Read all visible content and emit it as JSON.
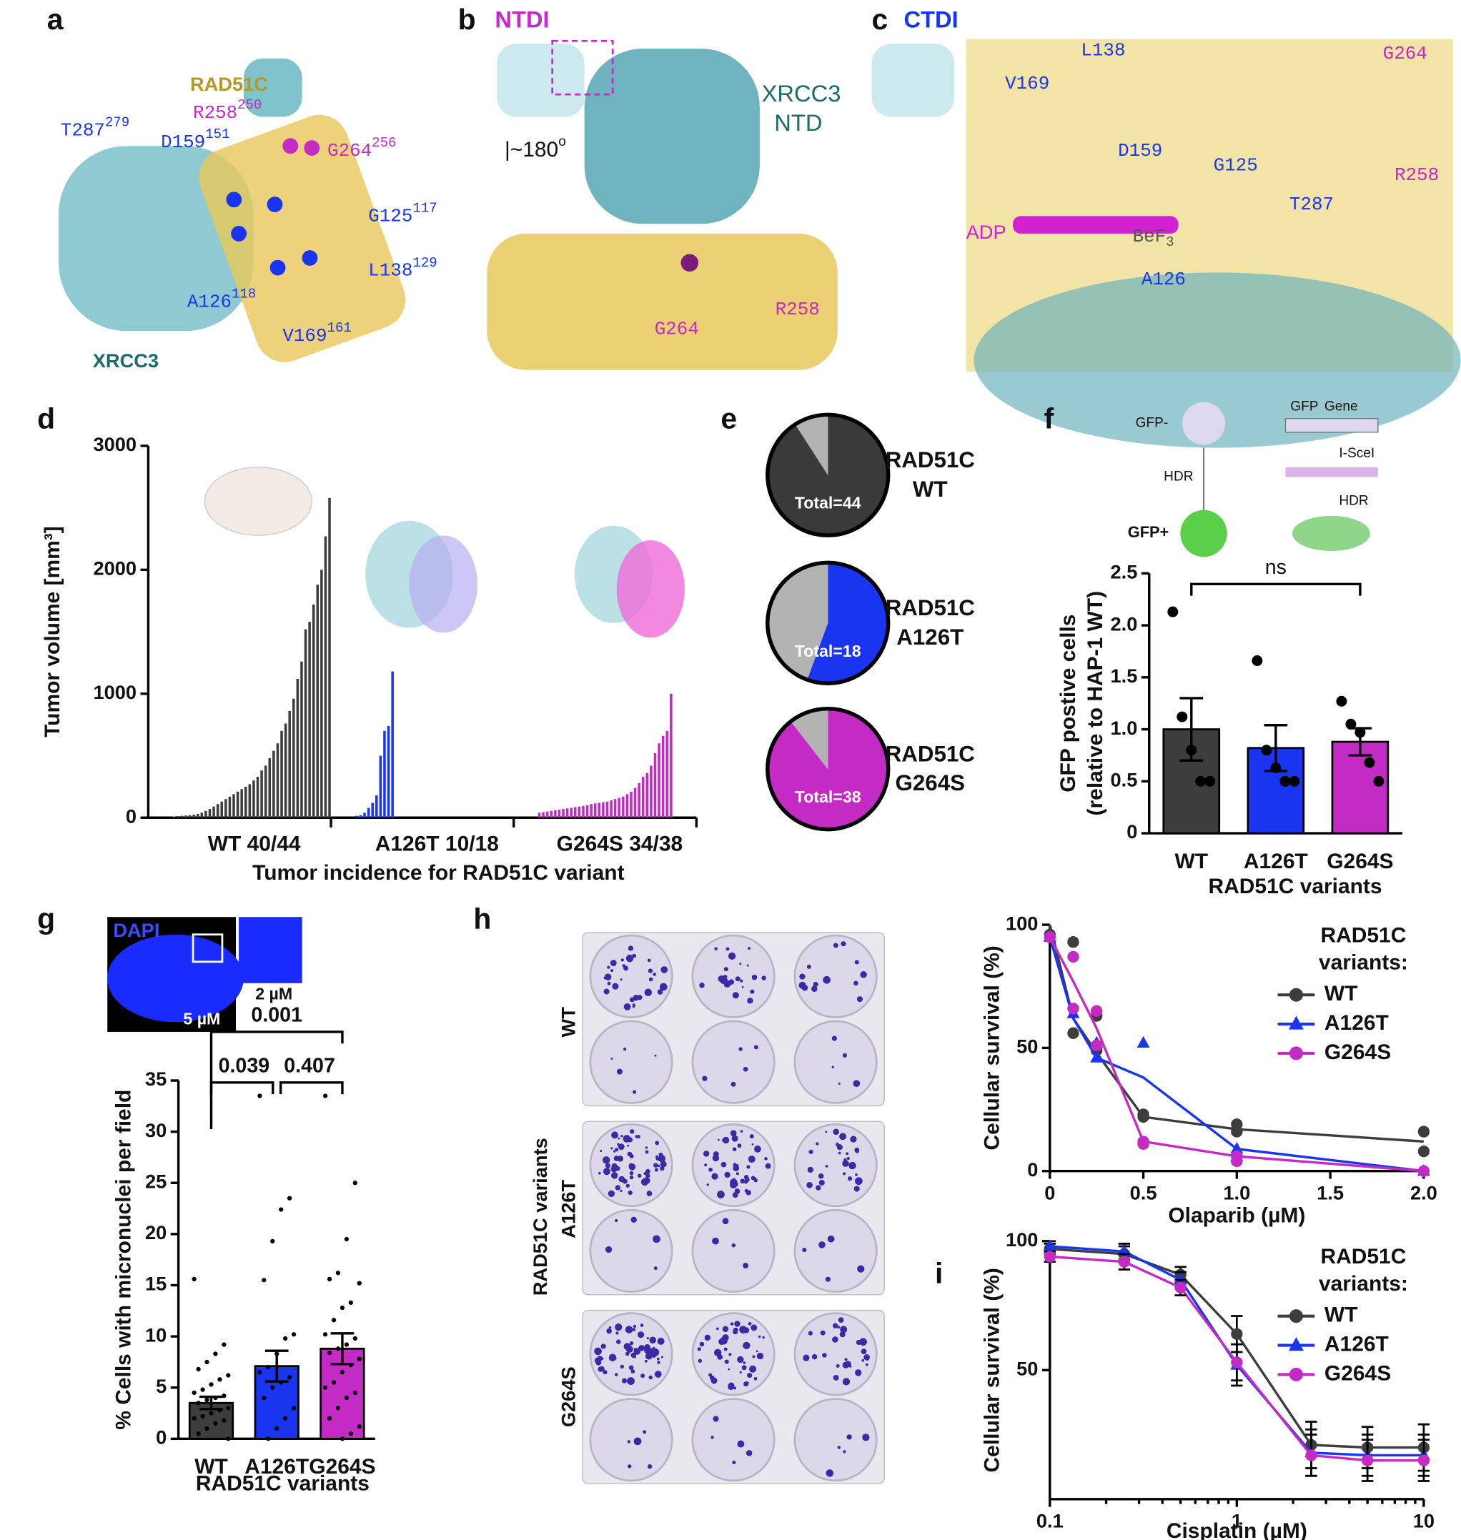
{
  "structure_a": {
    "panel": "a",
    "title": "RAD51C",
    "subunit": "XRCC3",
    "residues": [
      {
        "text": "R258",
        "sup": "250"
      },
      {
        "text": "T287",
        "sup": "279"
      },
      {
        "text": "D159",
        "sup": "151"
      },
      {
        "text": "G264",
        "sup": "256"
      },
      {
        "text": "G125",
        "sup": "117"
      },
      {
        "text": "L138",
        "sup": "129"
      },
      {
        "text": "A126",
        "sup": "118"
      },
      {
        "text": "V169",
        "sup": "161"
      }
    ]
  },
  "structure_b": {
    "panel": "b",
    "title": "NTDI",
    "rotation": {
      "text": "|~180",
      "sup": "o"
    },
    "subunit": [
      "XRCC3",
      "NTD"
    ],
    "residues": [
      "G264",
      "R258"
    ]
  },
  "structure_c": {
    "panel": "c",
    "title": "CTDI",
    "residues": [
      "L138",
      "G264",
      "V169",
      "D159",
      "G125",
      "R258",
      "T287",
      "A126"
    ],
    "adp": "ADP",
    "bef": {
      "text": "BeF",
      "sub": "3"
    }
  },
  "chart_data": [
    {
      "panel": "d",
      "type": "bar",
      "ylabel": "Tumor volume [mm³]",
      "xlabel": "Tumor incidence for RAD51C variant",
      "ylim": [
        0,
        3000
      ],
      "yticks": [
        0,
        1000,
        2000,
        3000
      ],
      "series": [
        {
          "name": "WT 40/44",
          "color": "#3d3d3d",
          "values": [
            10,
            12,
            15,
            18,
            20,
            25,
            30,
            40,
            55,
            70,
            90,
            110,
            130,
            150,
            170,
            190,
            210,
            230,
            250,
            270,
            300,
            330,
            380,
            420,
            480,
            540,
            600,
            700,
            760,
            860,
            960,
            1120,
            1260,
            1520,
            1580,
            1720,
            1880,
            2000,
            2270,
            2580
          ]
        },
        {
          "name": "A126T 10/18",
          "color": "#1a35f0",
          "values": [
            15,
            20,
            40,
            80,
            120,
            180,
            500,
            700,
            740,
            1180
          ]
        },
        {
          "name": "G264S 34/38",
          "color": "#c42bc4",
          "values": [
            40,
            45,
            50,
            55,
            60,
            65,
            70,
            75,
            80,
            85,
            90,
            95,
            100,
            110,
            115,
            120,
            125,
            130,
            140,
            150,
            160,
            170,
            190,
            210,
            240,
            280,
            330,
            360,
            420,
            520,
            600,
            660,
            700,
            1000
          ]
        }
      ]
    },
    {
      "panel": "e",
      "type": "pie",
      "pies": [
        {
          "title": [
            "RAD51C",
            "WT"
          ],
          "total_label": "Total=44",
          "values": [
            40,
            4
          ],
          "colors": [
            "#3a3a3a",
            "#b3b3b3"
          ]
        },
        {
          "title": [
            "RAD51C",
            "A126T"
          ],
          "total_label": "Total=18",
          "values": [
            10,
            8
          ],
          "colors": [
            "#1a35f0",
            "#b3b3b3"
          ]
        },
        {
          "title": [
            "RAD51C",
            "G264S"
          ],
          "total_label": "Total=38",
          "values": [
            34,
            4
          ],
          "colors": [
            "#c42bc4",
            "#b3b3b3"
          ]
        }
      ]
    },
    {
      "panel": "f",
      "type": "bar",
      "ylabel": [
        "GFP postive cells",
        "(relative to HAP-1 WT)"
      ],
      "xlabel": "RAD51C variants",
      "schematic": [
        "GFP-",
        "HDR",
        "GFP+",
        "GFP",
        "Gene",
        "I-SceI",
        "HDR"
      ],
      "categories": [
        "WT",
        "A126T",
        "G264S"
      ],
      "values": [
        1.0,
        0.82,
        0.88
      ],
      "errors": [
        0.3,
        0.22,
        0.13
      ],
      "colors": [
        "#3d3d3d",
        "#1a35f0",
        "#c42bc4"
      ],
      "points": [
        [
          2.13,
          1.12,
          0.8,
          0.5,
          0.5
        ],
        [
          1.66,
          0.8,
          0.63,
          0.5,
          0.5
        ],
        [
          1.27,
          1.05,
          0.97,
          0.68,
          0.5
        ]
      ],
      "comparisons": [
        "ns"
      ],
      "ylim": [
        0,
        2.5
      ],
      "yticks": [
        0,
        0.5,
        {
          "value": 1,
          "label": "1.0"
        },
        1.5,
        {
          "value": 2,
          "label": "2.0"
        },
        2.5
      ]
    },
    {
      "panel": "g",
      "type": "bar",
      "ylabel": "% Cells with micronuclei per field",
      "xlabel": "RAD51C variants",
      "inset": {
        "stain": "DAPI",
        "scale_bars": [
          "5 µM",
          "2 µM"
        ]
      },
      "categories": [
        "WT",
        "A126T",
        "G264S"
      ],
      "values": [
        3.5,
        7.1,
        8.8
      ],
      "errors": [
        0.6,
        1.5,
        1.5
      ],
      "colors": [
        "#3d3d3d",
        "#1a35f0",
        "#c42bc4"
      ],
      "points": [
        [
          15.6,
          9.2,
          8.3,
          7.5,
          6.8,
          6.2,
          5.8,
          5.3,
          4.8,
          4.5,
          4.2,
          4.0,
          3.8,
          3.5,
          3.0,
          2.8,
          2.5,
          2.2,
          2.0,
          1.8,
          1.5,
          1.0,
          0.5,
          0
        ],
        [
          33.5,
          23.5,
          22.4,
          19.3,
          15.5,
          10.2,
          9.8,
          8.3,
          7.0,
          6.5,
          6.0,
          5.5,
          5.0,
          4.0,
          3.0,
          2.0,
          1.0,
          0
        ],
        [
          33.5,
          25.0,
          19.5,
          16.2,
          15.6,
          15.2,
          13.3,
          12.8,
          11.6,
          10.2,
          9.8,
          9.2,
          8.8,
          8.4,
          7.8,
          7.2,
          6.5,
          5.5,
          5.0,
          4.5,
          4.0,
          3.0,
          2.0,
          1.2,
          0.5,
          0
        ]
      ],
      "comparisons": [
        "0.001",
        "0.039",
        "0.407"
      ],
      "ylim": [
        0,
        35
      ],
      "yticks": [
        0,
        5,
        10,
        15,
        20,
        25,
        30,
        35
      ]
    },
    {
      "panel": "h",
      "type": "line",
      "ylabel": "Cellular survival (%)",
      "xlabel": "Olaparib (µM)",
      "plates": {
        "conditions": [
          "WT",
          "A126T",
          "G264S"
        ],
        "group_label": "RAD51C variants"
      },
      "legend_title": [
        "RAD51C",
        "variants:"
      ],
      "x": [
        0,
        0.125,
        0.25,
        0.5,
        1,
        2
      ],
      "series": [
        {
          "name": "WT",
          "color": "#3d3d3d",
          "marker": "circle",
          "values": [
            100,
            62,
            48,
            22,
            17,
            12
          ],
          "replicate_x": [
            0,
            0.125,
            0.125,
            0.25,
            0.25,
            0.5,
            0.5,
            1,
            1,
            2,
            2
          ],
          "replicate_y": [
            96,
            93,
            56,
            63,
            49,
            23,
            22,
            19,
            16,
            16,
            8
          ]
        },
        {
          "name": "A126T",
          "color": "#1a35f0",
          "marker": "triangle",
          "values": [
            95,
            62,
            46,
            38,
            9,
            0
          ],
          "replicate_x": [
            0,
            0.125,
            0.25,
            0.25,
            0.5,
            1,
            1,
            2
          ],
          "replicate_y": [
            95,
            64,
            52,
            46,
            52,
            9,
            6,
            0
          ]
        },
        {
          "name": "G264S",
          "color": "#c42bc4",
          "marker": "circle",
          "values": [
            95,
            77,
            58,
            12,
            6,
            0
          ],
          "replicate_x": [
            0,
            0.125,
            0.125,
            0.25,
            0.25,
            0.5,
            0.5,
            1,
            1,
            2
          ],
          "replicate_y": [
            95,
            87,
            66,
            65,
            51,
            12,
            11,
            6,
            4,
            0
          ]
        }
      ],
      "xlim": [
        0,
        2
      ],
      "xticks": [
        0,
        0.5,
        {
          "value": 1,
          "label": "1.0"
        },
        1.5,
        {
          "value": 2,
          "label": "2.0"
        }
      ],
      "ylim": [
        0,
        100
      ],
      "yticks": [
        0,
        50,
        100
      ]
    },
    {
      "panel": "i",
      "type": "line",
      "ylabel": "Cellular survival (%)",
      "xlabel": "Cisplatin (µM)",
      "xscale": "log",
      "legend_title": [
        "RAD51C",
        "variants:"
      ],
      "x": [
        0.1,
        0.25,
        0.5,
        1,
        2.5,
        5,
        10
      ],
      "series": [
        {
          "name": "WT",
          "color": "#3d3d3d",
          "marker": "circle",
          "values": [
            97,
            95,
            87,
            64,
            21,
            20,
            20
          ],
          "errors": [
            2,
            3,
            3,
            7,
            9,
            8,
            9
          ]
        },
        {
          "name": "A126T",
          "color": "#1a35f0",
          "marker": "triangle",
          "values": [
            98,
            96,
            85,
            52,
            18,
            17,
            17
          ],
          "errors": [
            2,
            3,
            3,
            8,
            9,
            8,
            8
          ]
        },
        {
          "name": "G264S",
          "color": "#c42bc4",
          "marker": "circle",
          "values": [
            94,
            92,
            82,
            53,
            17,
            15,
            15
          ],
          "errors": [
            2,
            3,
            3,
            7,
            8,
            8,
            8
          ]
        }
      ],
      "xlim": [
        0.1,
        10
      ],
      "xticks": [
        0.1,
        1,
        10
      ],
      "ylim": [
        0,
        100
      ],
      "yticks": [
        50,
        100
      ]
    }
  ]
}
